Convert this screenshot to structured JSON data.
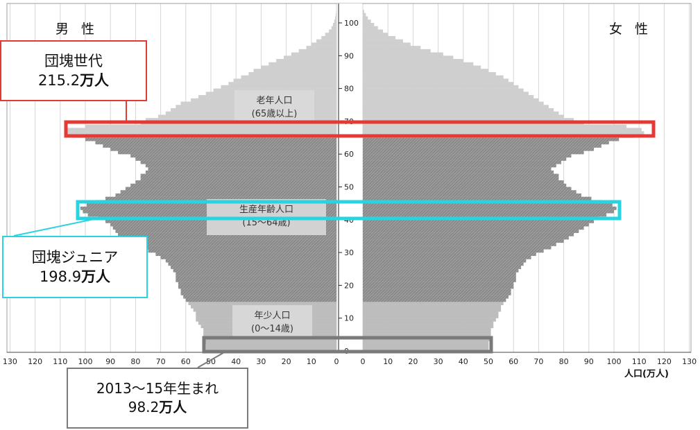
{
  "chart_data": {
    "type": "population-pyramid",
    "left_label": "男 性",
    "right_label": "女 性",
    "x_axis_title": "人口(万人)",
    "x_ticks_left": [
      130,
      120,
      110,
      100,
      90,
      80,
      70,
      60,
      50,
      40,
      30,
      20,
      10,
      0
    ],
    "x_ticks_right": [
      0,
      10,
      20,
      30,
      40,
      50,
      60,
      70,
      80,
      90,
      100,
      110,
      120,
      130
    ],
    "xlim": [
      0,
      130
    ],
    "age_ticks": [
      0,
      10,
      20,
      30,
      40,
      50,
      60,
      70,
      80,
      90,
      100
    ],
    "age_range": [
      0,
      103
    ],
    "bands": [
      {
        "name": "年少人口",
        "range": "(0〜14歳)",
        "ages": [
          0,
          14
        ],
        "color": "#bdbdbd"
      },
      {
        "name": "生産年齢人口",
        "range": "(15〜64歳)",
        "ages": [
          15,
          64
        ],
        "color": "#9e9e9e"
      },
      {
        "name": "老年人口",
        "range": "(65歳以上)",
        "ages": [
          65,
          103
        ],
        "color": "#cfcfcf"
      }
    ],
    "male": [
      52,
      52,
      53,
      53,
      53,
      53,
      53,
      54,
      55,
      56,
      56,
      56,
      57,
      58,
      59,
      60,
      61,
      62,
      62,
      63,
      63,
      64,
      64,
      64,
      65,
      66,
      67,
      68,
      70,
      72,
      75,
      78,
      80,
      83,
      85,
      87,
      88,
      89,
      90,
      92,
      95,
      99,
      101,
      102,
      99.5,
      96,
      92,
      88,
      86,
      84,
      82,
      80,
      78,
      78,
      76,
      75,
      76,
      78,
      80,
      82,
      87,
      90,
      93,
      96,
      100,
      105,
      107.6,
      108,
      100,
      78,
      76,
      71,
      68,
      66,
      64,
      62,
      58,
      55,
      52,
      49,
      46,
      43,
      41,
      38,
      35,
      33,
      30,
      27,
      24,
      21,
      18,
      15,
      12,
      10,
      8,
      6,
      4.5,
      3,
      2,
      1.4,
      0.9,
      0.5,
      0.3,
      0.1
    ],
    "female": [
      50,
      50,
      50,
      51,
      51,
      51,
      51,
      52,
      52,
      53,
      54,
      54,
      55,
      55,
      56,
      57,
      58,
      59,
      59,
      60,
      60,
      61,
      61,
      61,
      62,
      63,
      64,
      65,
      67,
      69,
      72,
      75,
      77,
      80,
      82,
      84,
      86,
      88,
      90,
      92,
      94,
      97,
      100,
      101,
      99.4,
      95,
      91,
      87,
      85,
      83,
      81,
      80,
      78,
      78,
      76,
      75,
      77,
      79,
      81,
      83,
      88,
      92,
      95,
      98,
      102,
      108,
      112,
      111,
      105,
      88,
      84,
      80,
      78,
      76,
      74,
      72,
      70,
      68,
      66,
      64,
      62,
      60,
      58,
      56,
      53,
      50,
      47,
      44,
      40,
      36,
      32,
      27,
      23,
      19,
      16,
      13,
      10,
      8,
      6,
      4.5,
      3.2,
      2,
      1.2,
      0.5
    ],
    "highlights": [
      {
        "name": "団塊世代",
        "value": "215.2",
        "unit": "万人",
        "ages": [
          66,
          68
        ],
        "color": "#e53935"
      },
      {
        "name": "団塊ジュニア",
        "value": "198.9",
        "unit": "万人",
        "ages": [
          41,
          44
        ],
        "color": "#29d3e0"
      },
      {
        "name": "2013〜15年生まれ",
        "value": "98.2",
        "unit": "万人",
        "ages": [
          0,
          2
        ],
        "color": "#7a7a7a"
      }
    ]
  },
  "callouts": {
    "dankai": {
      "line1": "団塊世代",
      "line2_num": "215.2",
      "line2_unit": "万人"
    },
    "junior": {
      "line1": "団塊ジュニア",
      "line2_num": "198.9",
      "line2_unit": "万人"
    },
    "birth": {
      "line1": "2013〜15年生まれ",
      "line2_num": "98.2",
      "line2_unit": "万人"
    }
  }
}
